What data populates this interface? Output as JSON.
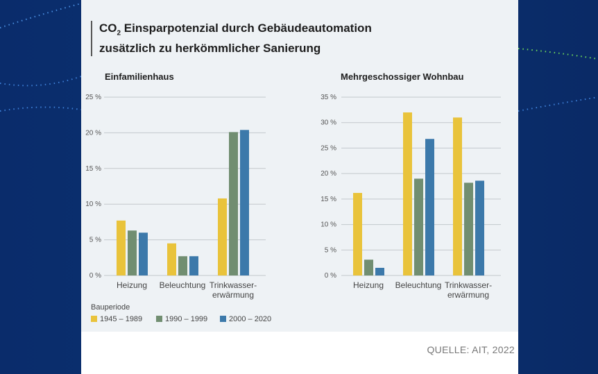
{
  "title_prefix": "CO",
  "title_sub": "2",
  "title_line1_rest": " Einsparpotenzial durch Gebäudeautomation",
  "title_line2": "zusätzlich zu herkömmlicher Sanierung",
  "source": "QUELLE: AIT, 2022",
  "legend_title": "Bauperiode",
  "colors": {
    "1945 – 1989": "#e9c33b",
    "1990 – 1999": "#718e71",
    "2000 – 2020": "#3c79aa",
    "panel": "#eef2f5"
  },
  "chart_data": [
    {
      "type": "bar",
      "title": "Einfamilienhaus",
      "categories": [
        "Heizung",
        "Beleuchtung",
        "Trinkwasser-\nerwärmung"
      ],
      "ylim": [
        0,
        25
      ],
      "yticks": [
        "0 %",
        "5 %",
        "10 %",
        "15 %",
        "20 %",
        "25 %"
      ],
      "grid": true,
      "series": [
        {
          "name": "1945 – 1989",
          "values": [
            7.7,
            4.5,
            10.8
          ]
        },
        {
          "name": "1990 – 1999",
          "values": [
            6.3,
            2.7,
            20.1
          ]
        },
        {
          "name": "2000 – 2020",
          "values": [
            6.0,
            2.7,
            20.4
          ]
        }
      ]
    },
    {
      "type": "bar",
      "title": "Mehrgeschossiger Wohnbau",
      "categories": [
        "Heizung",
        "Beleuchtung",
        "Trinkwasser-\nerwärmung"
      ],
      "ylim": [
        0,
        35
      ],
      "yticks": [
        "0 %",
        "5 %",
        "10 %",
        "15 %",
        "20 %",
        "25 %",
        "30 %",
        "35 %"
      ],
      "grid": true,
      "series": [
        {
          "name": "1945 – 1989",
          "values": [
            16.2,
            32.0,
            31.0
          ]
        },
        {
          "name": "1990 – 1999",
          "values": [
            3.1,
            19.0,
            18.2
          ]
        },
        {
          "name": "2000 – 2020",
          "values": [
            1.5,
            26.8,
            18.6
          ]
        }
      ]
    }
  ]
}
